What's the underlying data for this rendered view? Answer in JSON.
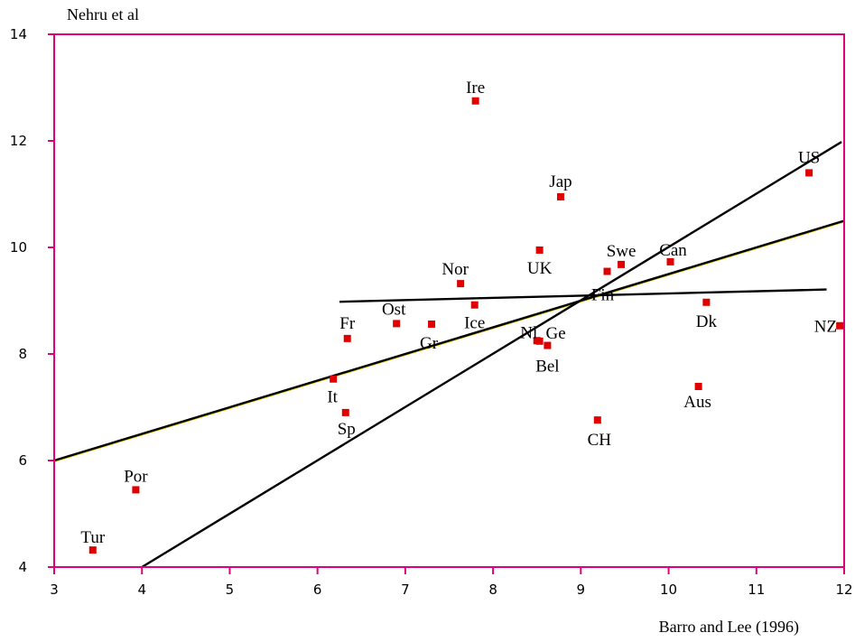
{
  "chart_data": {
    "type": "scatter",
    "ylabel": "Nehru et al",
    "xlabel": "Barro and Lee (1996)",
    "xlim": [
      3,
      12
    ],
    "ylim": [
      4,
      14
    ],
    "x_ticks": [
      3,
      4,
      5,
      6,
      7,
      8,
      9,
      10,
      11,
      12
    ],
    "y_ticks": [
      4,
      6,
      8,
      10,
      12,
      14
    ],
    "frame_color": "#e0007a",
    "point_color": "#e00000",
    "points": [
      {
        "label": "Ire",
        "x": 7.8,
        "y": 12.75
      },
      {
        "label": "US",
        "x": 11.6,
        "y": 11.4
      },
      {
        "label": "Jap",
        "x": 8.77,
        "y": 10.95
      },
      {
        "label": "UK",
        "x": 8.53,
        "y": 9.95
      },
      {
        "label": "Swe",
        "x": 9.46,
        "y": 9.68
      },
      {
        "label": "Can",
        "x": 10.02,
        "y": 9.73
      },
      {
        "label": "Fin",
        "x": 9.3,
        "y": 9.55
      },
      {
        "label": "Nor",
        "x": 7.63,
        "y": 9.32
      },
      {
        "label": "Ice",
        "x": 7.79,
        "y": 8.92
      },
      {
        "label": "Dk",
        "x": 10.43,
        "y": 8.97
      },
      {
        "label": "Ost",
        "x": 6.9,
        "y": 8.57
      },
      {
        "label": "Gr",
        "x": 7.3,
        "y": 8.56
      },
      {
        "label": "Fr",
        "x": 6.34,
        "y": 8.29
      },
      {
        "label": "NZ",
        "x": 11.95,
        "y": 8.53
      },
      {
        "label": "Nl",
        "x": 8.5,
        "y": 8.25
      },
      {
        "label": "Ge",
        "x": 8.53,
        "y": 8.24
      },
      {
        "label": "Bel",
        "x": 8.62,
        "y": 8.16
      },
      {
        "label": "It",
        "x": 6.18,
        "y": 7.53
      },
      {
        "label": "Aus",
        "x": 10.34,
        "y": 7.39
      },
      {
        "label": "Sp",
        "x": 6.32,
        "y": 6.9
      },
      {
        "label": "CH",
        "x": 9.19,
        "y": 6.76
      },
      {
        "label": "Por",
        "x": 3.93,
        "y": 5.45
      },
      {
        "label": "Tur",
        "x": 3.44,
        "y": 4.32
      }
    ],
    "lines": [
      {
        "x1": 3,
        "y1": 6.0,
        "x2": 12,
        "y2": 10.5,
        "color": "#000000",
        "edge": "#d8c800"
      },
      {
        "x1": 4,
        "y1": 4.0,
        "x2": 11.97,
        "y2": 11.98,
        "color": "#000000"
      },
      {
        "x1": 6.25,
        "y1": 8.98,
        "x2": 11.8,
        "y2": 9.21,
        "color": "#000000"
      }
    ]
  }
}
